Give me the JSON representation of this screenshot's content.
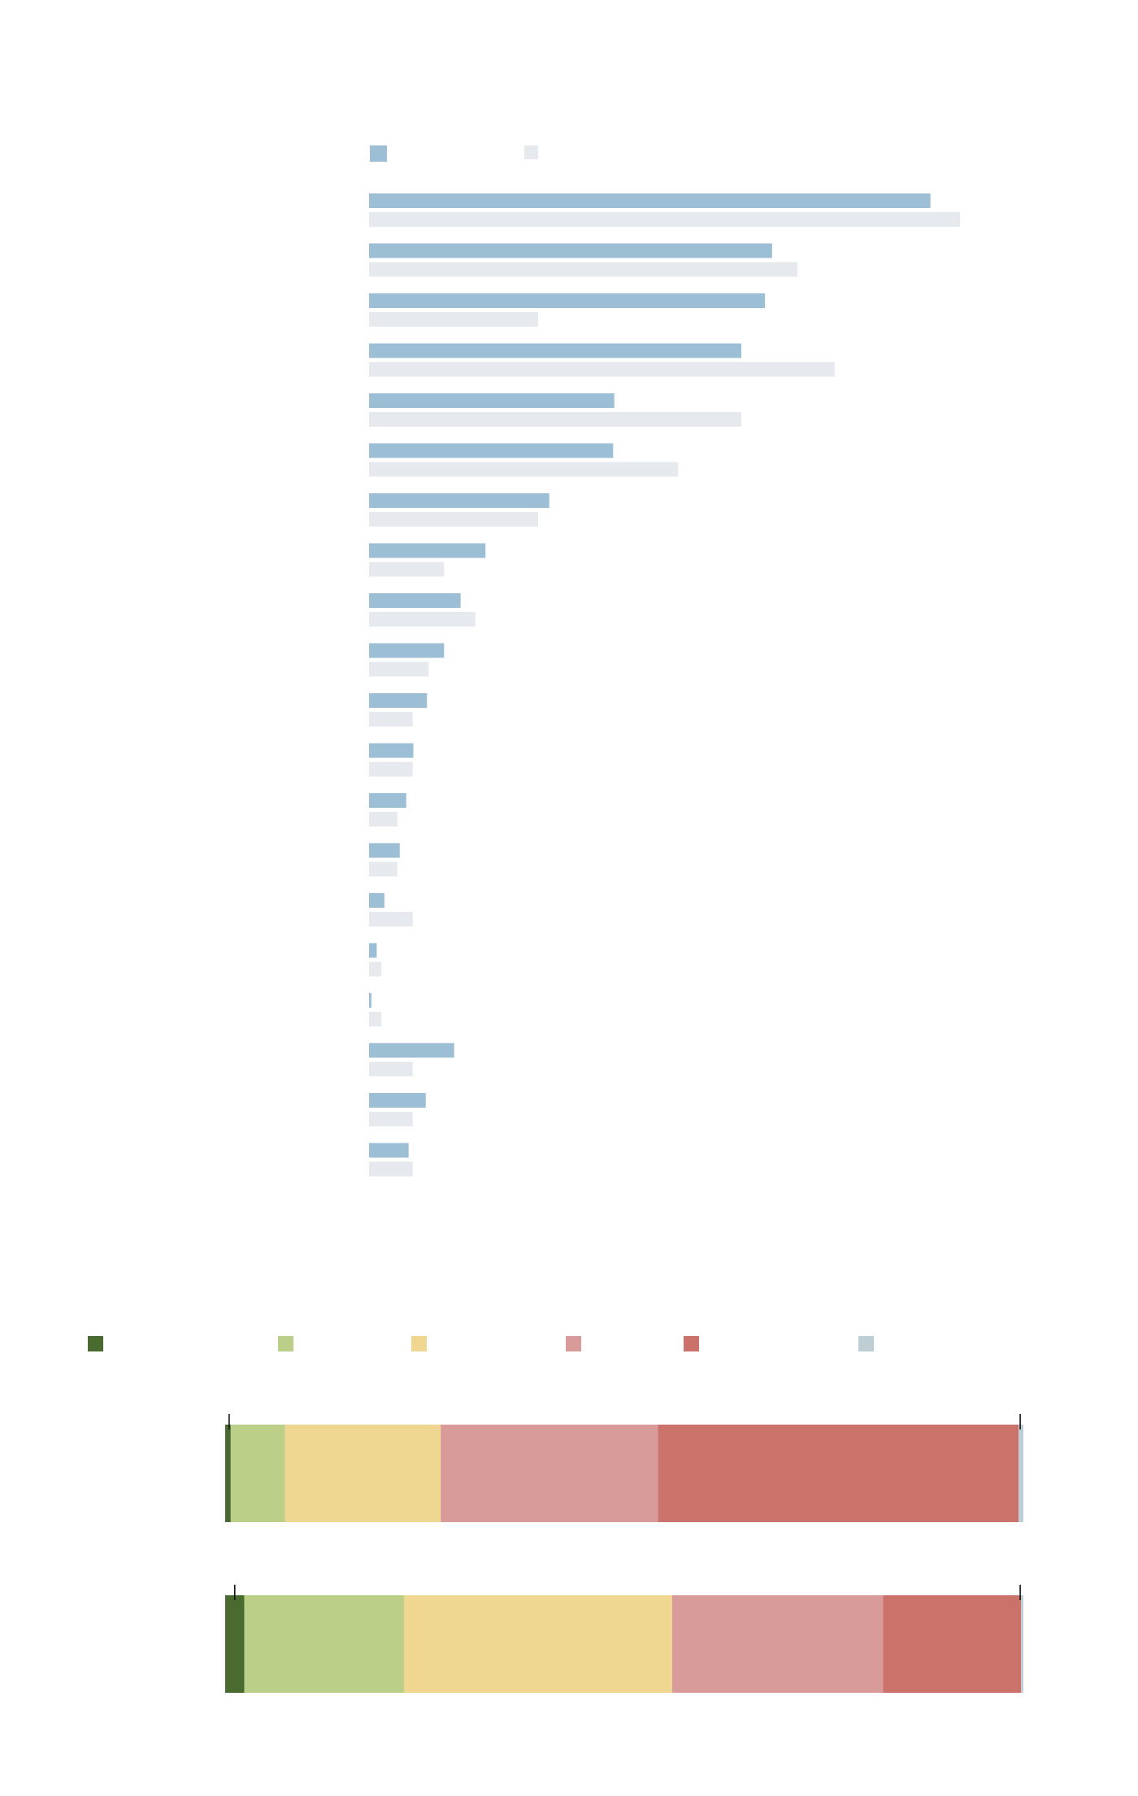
{
  "chart_data": [
    {
      "type": "bar",
      "orientation": "horizontal",
      "grid": false,
      "legend_placement": "top",
      "xlim": [
        0,
        100
      ],
      "categories": [
        "",
        "",
        "",
        "",
        "",
        "",
        "",
        "",
        "",
        "",
        "",
        "",
        "",
        "",
        "",
        "",
        "",
        "",
        "",
        ""
      ],
      "series": [
        {
          "color": "#9dbfd6",
          "values": [
            95,
            68.2,
            67,
            63,
            41.5,
            41.3,
            30.5,
            19.7,
            15.5,
            12.7,
            9.8,
            7.5,
            6.3,
            5.2,
            2.6,
            1.3,
            0.4,
            14.4,
            9.6,
            6.7
          ]
        },
        {
          "color": "#e6e9ee",
          "values": [
            100,
            72.5,
            28.6,
            78.8,
            63,
            52.3,
            28.6,
            12.7,
            18,
            10.1,
            7.4,
            7.4,
            4.8,
            4.8,
            7.4,
            2.1,
            2.1,
            7.4,
            7.4,
            7.4
          ]
        }
      ]
    },
    {
      "type": "bar",
      "orientation": "horizontal",
      "stacked": true,
      "grid": false,
      "legend_placement": "top",
      "xlim": [
        0,
        100
      ],
      "categories": [
        "",
        ""
      ],
      "series": [
        {
          "color": "#4a6b2f",
          "values": [
            0.7,
            2.4
          ]
        },
        {
          "color": "#bccf89",
          "values": [
            6.8,
            20
          ]
        },
        {
          "color": "#efd792",
          "values": [
            19.5,
            33.6
          ]
        },
        {
          "color": "#d99a9a",
          "values": [
            27.2,
            26.4
          ]
        },
        {
          "color": "#cb726a",
          "values": [
            45.2,
            17.3
          ]
        },
        {
          "color": "#bfcdd4",
          "values": [
            0.6,
            0.3
          ]
        }
      ],
      "markers": [
        0.5,
        1.2
      ],
      "end_markers": [
        99.6,
        99.6
      ]
    }
  ]
}
